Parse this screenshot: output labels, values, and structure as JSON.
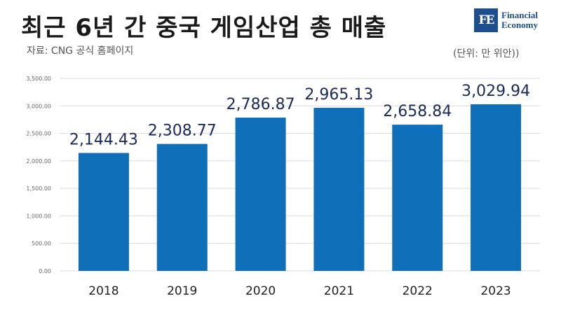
{
  "header": {
    "title": "최근 6년 간 중국 게임산업 총 매출",
    "source": "자료: CNG 공식 홈페이지",
    "unit": "(단위: 만 위안))"
  },
  "logo": {
    "mark": "FE",
    "line1": "Financial",
    "line2": "Economy"
  },
  "colors": {
    "bar": "#0f6fb8",
    "value_label": "#1a2a5a",
    "grid": "#dcdcdc",
    "tick": "#666666"
  },
  "chart_data": {
    "type": "bar",
    "categories": [
      "2018",
      "2019",
      "2020",
      "2021",
      "2022",
      "2023"
    ],
    "values": [
      2144.43,
      2308.77,
      2786.87,
      2965.13,
      2658.84,
      3029.94
    ],
    "value_labels": [
      "2,144.43",
      "2,308.77",
      "2,786.87",
      "2,965.13",
      "2,658.84",
      "3,029.94"
    ],
    "ylim": [
      0,
      3500
    ],
    "yticks": [
      0,
      500,
      1000,
      1500,
      2000,
      2500,
      3000,
      3500
    ],
    "ytick_labels": [
      "0.00",
      "500.00",
      "1,000.00",
      "1,500.00",
      "2,000.00",
      "2,500.00",
      "3,000.00",
      "3,500.00"
    ],
    "grid": true,
    "legend": "none"
  }
}
